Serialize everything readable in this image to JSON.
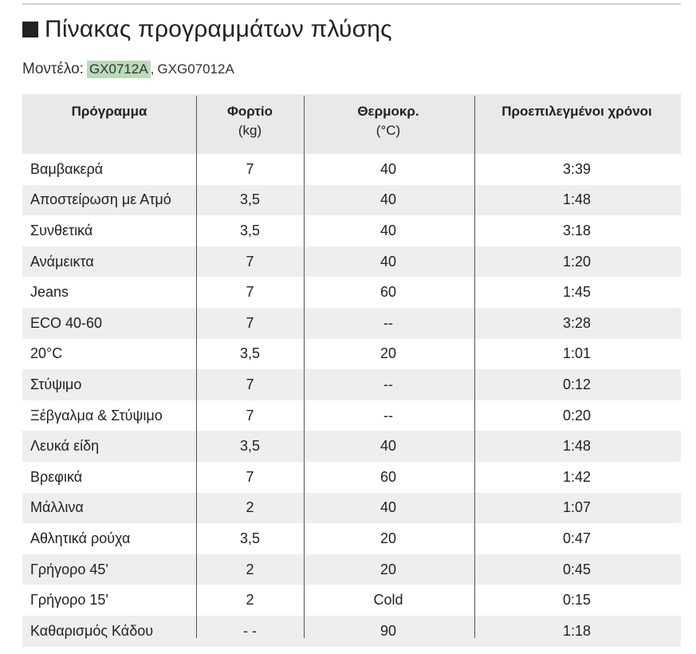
{
  "heading": {
    "title": "Πίνακας προγραμμάτων πλύσης"
  },
  "models": {
    "label": "Μοντέλο:",
    "selected": "GX0712A",
    "separator": ",",
    "other": "GXG07012A",
    "highlight_color": "#b9dbb9"
  },
  "table": {
    "headers": {
      "program": "Πρόγραμμα",
      "load": "Φορτίο",
      "load_unit": "(kg)",
      "temp": "Θερμοκρ.",
      "temp_unit": "(°C)",
      "time": "Προεπιλεγμένοι χρόνοι"
    },
    "rows": [
      {
        "program": "Βαμβακερά",
        "load": "7",
        "temp": "40",
        "time": "3:39"
      },
      {
        "program": "Αποστείρωση με Ατμό",
        "load": "3,5",
        "temp": "40",
        "time": "1:48"
      },
      {
        "program": "Συνθετικά",
        "load": "3,5",
        "temp": "40",
        "time": "3:18"
      },
      {
        "program": "Ανάμεικτα",
        "load": "7",
        "temp": "40",
        "time": "1:20"
      },
      {
        "program": "Jeans",
        "load": "7",
        "temp": "60",
        "time": "1:45"
      },
      {
        "program": "ECO 40-60",
        "load": "7",
        "temp": "--",
        "time": "3:28"
      },
      {
        "program": "20°C",
        "load": "3,5",
        "temp": "20",
        "time": "1:01"
      },
      {
        "program": "Στύψιμο",
        "load": "7",
        "temp": "--",
        "time": "0:12"
      },
      {
        "program": "Ξέβγαλμα & Στύψιμο",
        "load": "7",
        "temp": "--",
        "time": "0:20"
      },
      {
        "program": "Λευκά είδη",
        "load": "3,5",
        "temp": "40",
        "time": "1:48"
      },
      {
        "program": "Βρεφικά",
        "load": "7",
        "temp": "60",
        "time": "1:42"
      },
      {
        "program": "Μάλλινα",
        "load": "2",
        "temp": "40",
        "time": "1:07"
      },
      {
        "program": "Αθλητικά ρούχα",
        "load": "3,5",
        "temp": "20",
        "time": "0:47"
      },
      {
        "program": "Γρήγορο 45'",
        "load": "2",
        "temp": "20",
        "time": "0:45"
      },
      {
        "program": "Γρήγορο 15'",
        "load": "2",
        "temp": "Cold",
        "time": "0:15"
      },
      {
        "program": "Καθαρισμός Κάδου",
        "load": "- -",
        "temp": "90",
        "time": "1:18"
      }
    ]
  }
}
